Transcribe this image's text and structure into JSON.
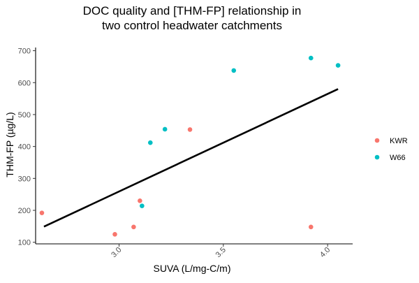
{
  "chart_data": {
    "type": "scatter",
    "title_lines": [
      "DOC quality and [THM-FP] relationship in",
      "two control headwater catchments"
    ],
    "xlabel": "SUVA (L/mg-C/m)",
    "ylabel": "THM-FP (µg/L)",
    "xlim": [
      2.6,
      4.12
    ],
    "ylim": [
      95,
      710
    ],
    "x_ticks": [
      3.0,
      3.5,
      4.0
    ],
    "x_tick_labels": [
      "3.0",
      "3.5",
      "4.0"
    ],
    "y_ticks": [
      100,
      200,
      300,
      400,
      500,
      600,
      700
    ],
    "y_tick_labels": [
      "100",
      "200",
      "300",
      "400",
      "500",
      "600",
      "700"
    ],
    "grid": false,
    "legend_position": "right",
    "series": [
      {
        "name": "KWR",
        "color": "#F8766D",
        "points": [
          {
            "x": 2.63,
            "y": 192
          },
          {
            "x": 2.98,
            "y": 125
          },
          {
            "x": 3.07,
            "y": 148
          },
          {
            "x": 3.1,
            "y": 230
          },
          {
            "x": 3.34,
            "y": 453
          },
          {
            "x": 3.92,
            "y": 148
          }
        ]
      },
      {
        "name": "W66",
        "color": "#00BFC4",
        "points": [
          {
            "x": 3.11,
            "y": 214
          },
          {
            "x": 3.15,
            "y": 412
          },
          {
            "x": 3.22,
            "y": 454
          },
          {
            "x": 3.55,
            "y": 638
          },
          {
            "x": 3.92,
            "y": 677
          },
          {
            "x": 4.05,
            "y": 654
          }
        ]
      }
    ],
    "trend_line": {
      "x": [
        2.64,
        4.05
      ],
      "y": [
        149,
        580
      ],
      "color": "#000000"
    }
  }
}
